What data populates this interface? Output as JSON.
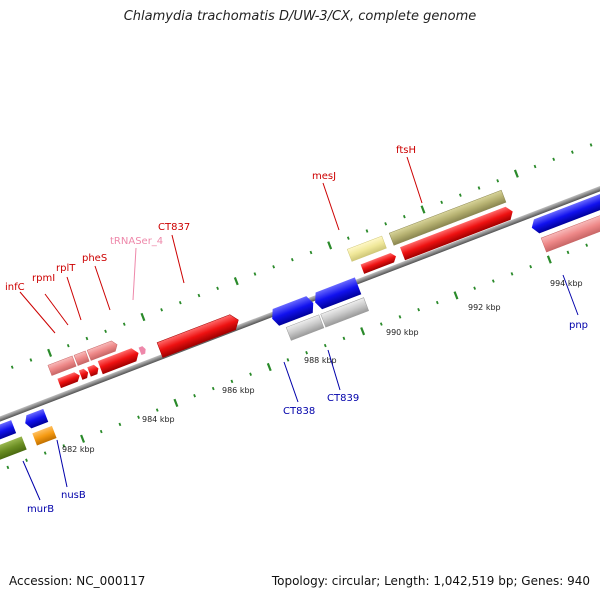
{
  "title": "Chlamydia trachomatis D/UW-3/CX, complete genome",
  "footer": {
    "accession": "Accession: NC_000117",
    "topology": "Topology: circular; Length: 1,042,519 bp; Genes: 940"
  },
  "ticks": [
    "982 kbp",
    "984 kbp",
    "986 kbp",
    "988 kbp",
    "990 kbp",
    "992 kbp",
    "994 kbp"
  ],
  "gene_labels_top": [
    "infC",
    "rpmI",
    "rplT",
    "pheS",
    "tRNASer_4",
    "CT837",
    "mesJ",
    "ftsH"
  ],
  "gene_labels_bottom": [
    "murB",
    "nusB",
    "CT838",
    "CT839",
    "pnp"
  ],
  "colors": {
    "red": "#ee1111",
    "pink": "#ee8888",
    "blue": "#1111ee",
    "gray": "#c8c8c8",
    "olive": "#b5b070",
    "yellow": "#f0e89a",
    "orange": "#f59a12",
    "green": "#6b8e23",
    "tick": "#2a8a2a",
    "label_top": "#cc0000",
    "label_bottom": "#0000aa",
    "label_trna": "#ee88aa"
  }
}
